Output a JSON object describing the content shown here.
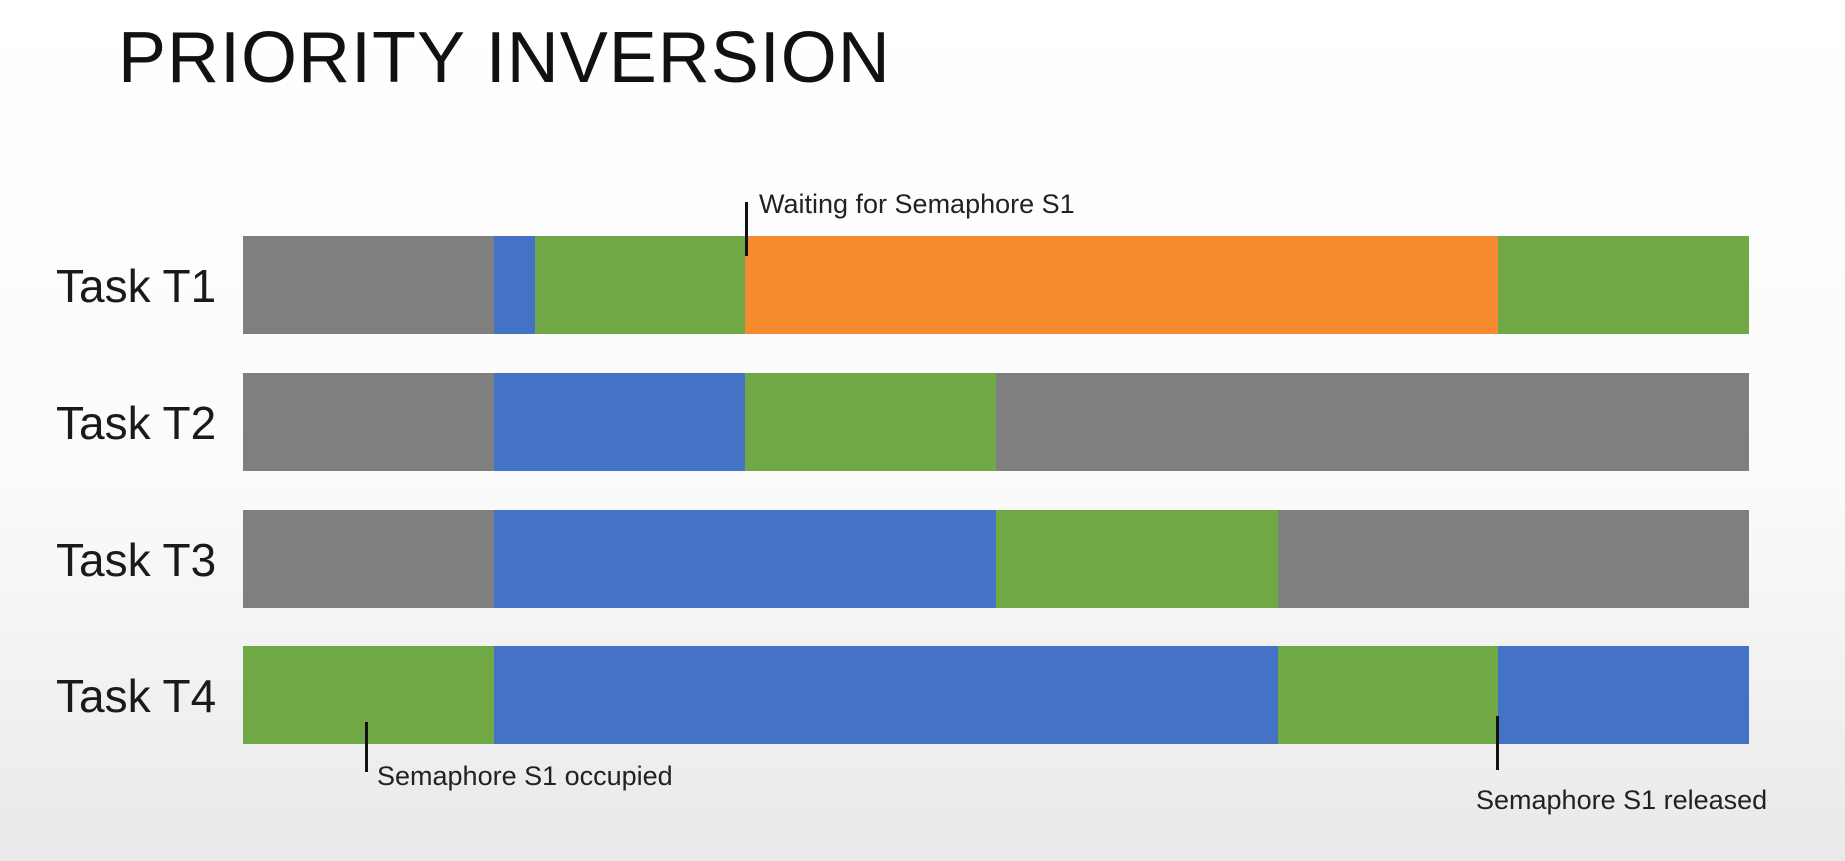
{
  "title": "PRIORITY INVERSION",
  "colors": {
    "idle": "#7f7f7f",
    "ready": "#4472c4",
    "running": "#70a845",
    "blocked": "#f58a2e"
  },
  "timeline": {
    "slots": 12,
    "tasks": [
      {
        "label": "Task T1",
        "segments": [
          {
            "state": "idle",
            "start": 0,
            "end": 2
          },
          {
            "state": "ready",
            "start": 2,
            "end": 2.33
          },
          {
            "state": "running",
            "start": 2.33,
            "end": 4
          },
          {
            "state": "blocked",
            "start": 4,
            "end": 10
          },
          {
            "state": "running",
            "start": 10,
            "end": 12
          }
        ]
      },
      {
        "label": "Task T2",
        "segments": [
          {
            "state": "idle",
            "start": 0,
            "end": 2
          },
          {
            "state": "ready",
            "start": 2,
            "end": 4
          },
          {
            "state": "running",
            "start": 4,
            "end": 6
          },
          {
            "state": "idle",
            "start": 6,
            "end": 12
          }
        ]
      },
      {
        "label": "Task T3",
        "segments": [
          {
            "state": "idle",
            "start": 0,
            "end": 2
          },
          {
            "state": "ready",
            "start": 2,
            "end": 6
          },
          {
            "state": "running",
            "start": 6,
            "end": 8.25
          },
          {
            "state": "idle",
            "start": 8.25,
            "end": 12
          }
        ]
      },
      {
        "label": "Task T4",
        "segments": [
          {
            "state": "running",
            "start": 0,
            "end": 2
          },
          {
            "state": "ready",
            "start": 2,
            "end": 8.25
          },
          {
            "state": "running",
            "start": 8.25,
            "end": 10
          },
          {
            "state": "ready",
            "start": 10,
            "end": 12
          }
        ]
      }
    ]
  },
  "annotations": [
    {
      "text": "Waiting for Semaphore S1",
      "task": 0,
      "time": 4
    },
    {
      "text": "Semaphore S1 occupied",
      "task": 3,
      "time": 0.97
    },
    {
      "text": "Semaphore S1 released",
      "task": 3,
      "time": 10
    }
  ]
}
